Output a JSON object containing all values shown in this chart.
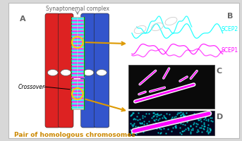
{
  "bg_color": "#d8d8d8",
  "panel_bg": "#ffffff",
  "title_text": "Synaptonemal complex",
  "label_A": "A",
  "label_B": "B",
  "label_C": "C",
  "label_D": "D",
  "scep2_label": "SCEP2",
  "scep1_label": "SCEP1",
  "crossover_label": "Crossover",
  "bottom_label": "Pair of homologous chromosomes",
  "bottom_label_color": "#cc8800",
  "label_color": "#666666",
  "scep2_color": "#00ffff",
  "scep1_color": "#ff00ff",
  "red_chrom": "#dd2222",
  "blue_chrom": "#3355cc",
  "sc_gray": "#bbbbbb",
  "sc_green": "#00cc00",
  "sc_magenta": "#ff00ff",
  "sc_cyan": "#00ffff",
  "arrow_color": "#dd9900",
  "yellow_circle": "#ffcc00"
}
